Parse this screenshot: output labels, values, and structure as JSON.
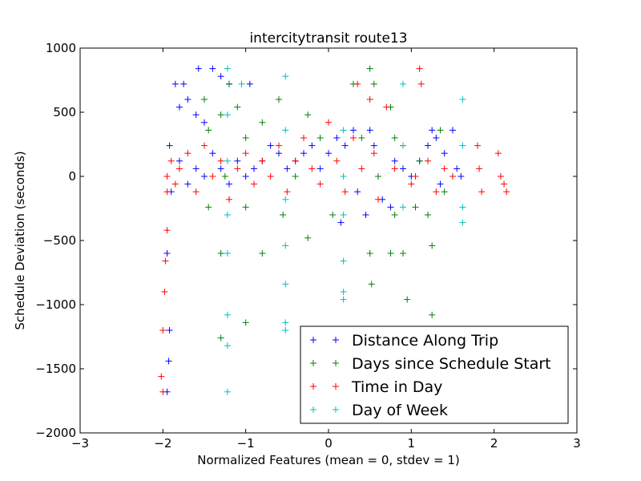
{
  "chart_data": {
    "type": "scatter",
    "title": "intercitytransit route13",
    "xlabel": "Normalized Features (mean = 0, stdev = 1)",
    "ylabel": "Schedule Deviation (seconds)",
    "xlim": [
      -3,
      3
    ],
    "ylim": [
      -2000,
      1000
    ],
    "xticks": [
      -3,
      -2,
      -1,
      0,
      1,
      2,
      3
    ],
    "xtick_labels": [
      "−3",
      "−2",
      "−1",
      "0",
      "1",
      "2",
      "3"
    ],
    "yticks": [
      1000,
      500,
      0,
      -500,
      -1000,
      -1500,
      -2000
    ],
    "ytick_labels": [
      "1000",
      "500",
      "0",
      "−500",
      "−1000",
      "−1500",
      "−2000"
    ],
    "grid": false,
    "legend_position": "lower-right",
    "marker": "+",
    "series": [
      {
        "name": "Distance Along Trip",
        "color": "#0000ff",
        "points": [
          [
            -1.92,
            240
          ],
          [
            -1.85,
            720
          ],
          [
            -1.8,
            540
          ],
          [
            -1.75,
            720
          ],
          [
            -1.7,
            600
          ],
          [
            -1.6,
            480
          ],
          [
            -1.57,
            840
          ],
          [
            -1.5,
            420
          ],
          [
            -1.4,
            840
          ],
          [
            -1.3,
            780
          ],
          [
            -1.2,
            720
          ],
          [
            -0.95,
            720
          ],
          [
            -1.9,
            -120
          ],
          [
            -1.95,
            -600
          ],
          [
            -1.92,
            -1200
          ],
          [
            -1.95,
            -1680
          ],
          [
            -1.93,
            -1440
          ],
          [
            -1.8,
            120
          ],
          [
            -1.7,
            -60
          ],
          [
            -1.6,
            60
          ],
          [
            -1.5,
            0
          ],
          [
            -1.4,
            180
          ],
          [
            -1.3,
            60
          ],
          [
            -1.2,
            -60
          ],
          [
            -1.1,
            120
          ],
          [
            -1.0,
            0
          ],
          [
            -0.9,
            60
          ],
          [
            -0.8,
            120
          ],
          [
            -0.7,
            240
          ],
          [
            -0.6,
            180
          ],
          [
            -0.5,
            60
          ],
          [
            -0.4,
            120
          ],
          [
            -0.3,
            180
          ],
          [
            -0.2,
            240
          ],
          [
            -0.1,
            60
          ],
          [
            0.0,
            180
          ],
          [
            0.1,
            300
          ],
          [
            0.15,
            -360
          ],
          [
            0.2,
            240
          ],
          [
            0.3,
            360
          ],
          [
            0.35,
            -120
          ],
          [
            0.45,
            -300
          ],
          [
            0.5,
            360
          ],
          [
            0.55,
            240
          ],
          [
            0.65,
            -180
          ],
          [
            0.75,
            -240
          ],
          [
            0.8,
            120
          ],
          [
            0.9,
            60
          ],
          [
            1.0,
            0
          ],
          [
            1.1,
            120
          ],
          [
            1.2,
            240
          ],
          [
            1.25,
            360
          ],
          [
            1.3,
            300
          ],
          [
            1.35,
            -60
          ],
          [
            1.4,
            180
          ],
          [
            1.5,
            360
          ],
          [
            1.55,
            60
          ],
          [
            1.6,
            0
          ]
        ]
      },
      {
        "name": "Days since Schedule Start",
        "color": "#008000",
        "points": [
          [
            -1.5,
            600
          ],
          [
            -1.45,
            360
          ],
          [
            -1.45,
            -240
          ],
          [
            -1.3,
            -1260
          ],
          [
            -1.3,
            -600
          ],
          [
            -1.3,
            480
          ],
          [
            -1.25,
            0
          ],
          [
            -1.2,
            720
          ],
          [
            -1.1,
            540
          ],
          [
            -1.0,
            300
          ],
          [
            -1.0,
            -240
          ],
          [
            -1.0,
            -1140
          ],
          [
            -0.8,
            -600
          ],
          [
            -0.8,
            420
          ],
          [
            -0.6,
            600
          ],
          [
            -0.55,
            -300
          ],
          [
            -0.4,
            0
          ],
          [
            -0.25,
            480
          ],
          [
            -0.25,
            -480
          ],
          [
            -0.1,
            300
          ],
          [
            0.05,
            -300
          ],
          [
            0.3,
            720
          ],
          [
            0.4,
            300
          ],
          [
            0.5,
            -1200
          ],
          [
            0.5,
            -600
          ],
          [
            0.5,
            840
          ],
          [
            0.52,
            -840
          ],
          [
            0.55,
            720
          ],
          [
            0.6,
            0
          ],
          [
            0.75,
            -600
          ],
          [
            0.75,
            540
          ],
          [
            0.8,
            300
          ],
          [
            0.8,
            -300
          ],
          [
            0.9,
            -600
          ],
          [
            0.95,
            -960
          ],
          [
            1.05,
            -240
          ],
          [
            1.1,
            120
          ],
          [
            1.2,
            -300
          ],
          [
            1.25,
            -1080
          ],
          [
            1.25,
            -540
          ],
          [
            1.3,
            -1200
          ],
          [
            1.35,
            360
          ],
          [
            1.4,
            -120
          ]
        ]
      },
      {
        "name": "Time in Day",
        "color": "#ff0000",
        "points": [
          [
            -2.0,
            -1680
          ],
          [
            -2.02,
            -1560
          ],
          [
            -2.0,
            -1200
          ],
          [
            -1.98,
            -900
          ],
          [
            -1.97,
            -660
          ],
          [
            -1.95,
            -420
          ],
          [
            -1.95,
            -120
          ],
          [
            -1.95,
            0
          ],
          [
            -1.9,
            120
          ],
          [
            -1.85,
            -60
          ],
          [
            -1.8,
            60
          ],
          [
            -1.7,
            180
          ],
          [
            -1.6,
            -120
          ],
          [
            -1.5,
            240
          ],
          [
            -1.4,
            0
          ],
          [
            -1.3,
            120
          ],
          [
            -1.2,
            -180
          ],
          [
            -1.1,
            60
          ],
          [
            -1.0,
            180
          ],
          [
            -0.9,
            -60
          ],
          [
            -0.8,
            120
          ],
          [
            -0.7,
            0
          ],
          [
            -0.6,
            240
          ],
          [
            -0.5,
            -120
          ],
          [
            -0.4,
            120
          ],
          [
            -0.3,
            300
          ],
          [
            -0.2,
            60
          ],
          [
            -0.1,
            -60
          ],
          [
            0.0,
            420
          ],
          [
            0.1,
            120
          ],
          [
            0.2,
            -120
          ],
          [
            0.3,
            300
          ],
          [
            0.35,
            720
          ],
          [
            0.4,
            60
          ],
          [
            0.5,
            600
          ],
          [
            0.55,
            180
          ],
          [
            0.6,
            -180
          ],
          [
            0.7,
            540
          ],
          [
            0.8,
            60
          ],
          [
            0.9,
            240
          ],
          [
            1.0,
            -60
          ],
          [
            1.05,
            0
          ],
          [
            1.1,
            840
          ],
          [
            1.12,
            720
          ],
          [
            1.2,
            120
          ],
          [
            1.3,
            -120
          ],
          [
            1.4,
            60
          ],
          [
            1.5,
            0
          ],
          [
            1.8,
            240
          ],
          [
            1.82,
            60
          ],
          [
            1.85,
            -120
          ],
          [
            2.05,
            180
          ],
          [
            2.08,
            0
          ],
          [
            2.12,
            -60
          ],
          [
            2.15,
            -120
          ]
        ]
      },
      {
        "name": "Day of Week",
        "color": "#00bfbf",
        "points": [
          [
            -1.22,
            840
          ],
          [
            -1.22,
            480
          ],
          [
            -1.22,
            120
          ],
          [
            -1.22,
            -300
          ],
          [
            -1.22,
            -600
          ],
          [
            -1.22,
            -1080
          ],
          [
            -1.22,
            -1320
          ],
          [
            -1.22,
            -1680
          ],
          [
            -1.05,
            720
          ],
          [
            -0.52,
            780
          ],
          [
            -0.52,
            360
          ],
          [
            -0.52,
            -180
          ],
          [
            -0.52,
            -540
          ],
          [
            -0.52,
            -840
          ],
          [
            -0.52,
            -1140
          ],
          [
            -0.52,
            -1200
          ],
          [
            0.18,
            360
          ],
          [
            0.18,
            0
          ],
          [
            0.18,
            -300
          ],
          [
            0.18,
            -660
          ],
          [
            0.18,
            -900
          ],
          [
            0.18,
            -960
          ],
          [
            0.9,
            720
          ],
          [
            0.9,
            240
          ],
          [
            0.9,
            -240
          ],
          [
            1.62,
            600
          ],
          [
            1.62,
            240
          ],
          [
            1.62,
            -240
          ],
          [
            1.62,
            -360
          ]
        ]
      }
    ]
  }
}
